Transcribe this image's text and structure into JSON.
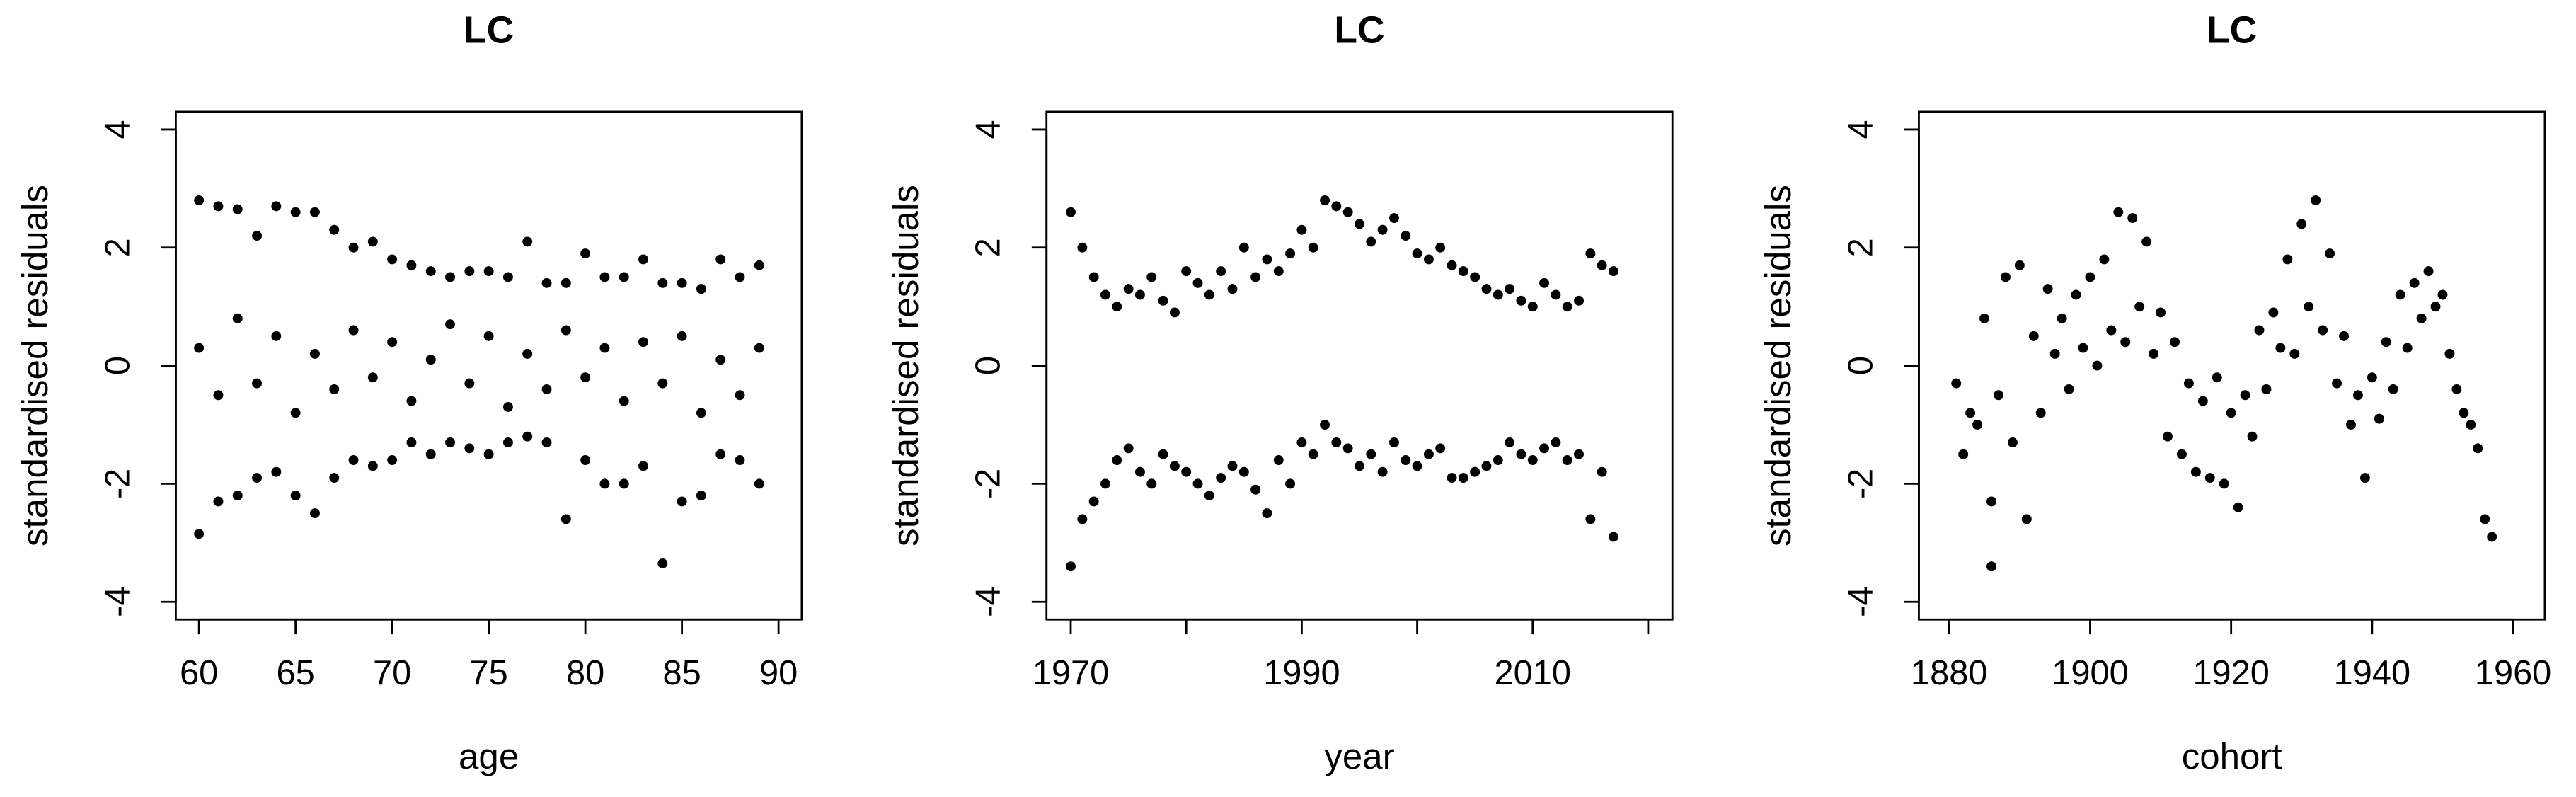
{
  "chart_data": [
    {
      "type": "scatter",
      "title": "LC",
      "xlabel": "age",
      "ylabel": "standardised residuals",
      "color": "#000000",
      "xlim": [
        58.8,
        91.2
      ],
      "ylim": [
        -4.3,
        4.3
      ],
      "xticks": [
        60,
        65,
        70,
        75,
        80,
        85,
        90
      ],
      "yticks": [
        -4,
        -2,
        0,
        2,
        4
      ],
      "x": [
        60,
        60,
        60,
        61,
        61,
        61,
        62,
        62,
        62,
        63,
        63,
        63,
        64,
        64,
        64,
        65,
        65,
        65,
        66,
        66,
        66,
        67,
        67,
        67,
        68,
        68,
        68,
        69,
        69,
        69,
        70,
        70,
        70,
        71,
        71,
        71,
        72,
        72,
        72,
        73,
        73,
        73,
        74,
        74,
        74,
        75,
        75,
        75,
        76,
        76,
        76,
        77,
        77,
        77,
        78,
        78,
        78,
        79,
        79,
        79,
        80,
        80,
        80,
        81,
        81,
        81,
        82,
        82,
        82,
        83,
        83,
        83,
        84,
        84,
        84,
        85,
        85,
        85,
        86,
        86,
        86,
        87,
        87,
        87,
        88,
        88,
        88,
        89,
        89,
        89
      ],
      "values": [
        2.8,
        -2.85,
        0.3,
        2.7,
        -2.3,
        -0.5,
        2.65,
        -2.2,
        0.8,
        2.2,
        -1.9,
        -0.3,
        2.7,
        -1.8,
        0.5,
        2.6,
        -2.2,
        -0.8,
        2.6,
        -2.5,
        0.2,
        2.3,
        -1.9,
        -0.4,
        2.0,
        -1.6,
        0.6,
        2.1,
        -1.7,
        -0.2,
        1.8,
        -1.6,
        0.4,
        1.7,
        -1.3,
        -0.6,
        1.6,
        -1.5,
        0.1,
        1.5,
        -1.3,
        0.7,
        1.6,
        -1.4,
        -0.3,
        1.6,
        -1.5,
        0.5,
        1.5,
        -1.3,
        -0.7,
        2.1,
        -1.2,
        0.2,
        1.4,
        -1.3,
        -0.4,
        1.4,
        -2.6,
        0.6,
        1.9,
        -1.6,
        -0.2,
        1.5,
        -2.0,
        0.3,
        1.5,
        -2.0,
        -0.6,
        1.8,
        -1.7,
        0.4,
        1.4,
        -3.35,
        -0.3,
        1.4,
        -2.3,
        0.5,
        1.3,
        -2.2,
        -0.8,
        1.8,
        -1.5,
        0.1,
        1.5,
        -1.6,
        -0.5,
        1.7,
        -2.0,
        0.3
      ]
    },
    {
      "type": "scatter",
      "title": "LC",
      "xlabel": "year",
      "ylabel": "standardised residuals",
      "color": "#000000",
      "xlim": [
        1967.9,
        2022.1
      ],
      "ylim": [
        -4.3,
        4.3
      ],
      "xticks": [
        1970,
        1990,
        2010
      ],
      "xticks_unlabeled": [
        1980,
        2000,
        2020
      ],
      "yticks": [
        -4,
        -2,
        0,
        2,
        4
      ],
      "x": [
        1970,
        1970,
        1971,
        1971,
        1972,
        1972,
        1973,
        1973,
        1974,
        1974,
        1975,
        1975,
        1976,
        1976,
        1977,
        1977,
        1978,
        1978,
        1979,
        1979,
        1980,
        1980,
        1981,
        1981,
        1982,
        1982,
        1983,
        1983,
        1984,
        1984,
        1985,
        1985,
        1986,
        1986,
        1987,
        1987,
        1988,
        1988,
        1989,
        1989,
        1990,
        1990,
        1991,
        1991,
        1992,
        1992,
        1993,
        1993,
        1994,
        1994,
        1995,
        1995,
        1996,
        1996,
        1997,
        1997,
        1998,
        1998,
        1999,
        1999,
        2000,
        2000,
        2001,
        2001,
        2002,
        2002,
        2003,
        2003,
        2004,
        2004,
        2005,
        2005,
        2006,
        2006,
        2007,
        2007,
        2008,
        2008,
        2009,
        2009,
        2010,
        2010,
        2011,
        2011,
        2012,
        2012,
        2013,
        2013,
        2014,
        2014,
        2015,
        2015,
        2016,
        2016,
        2017,
        2017
      ],
      "values": [
        2.6,
        -3.4,
        2.0,
        -2.6,
        1.5,
        -2.3,
        1.2,
        -2.0,
        1.0,
        -1.6,
        1.3,
        -1.4,
        1.2,
        -1.8,
        1.5,
        -2.0,
        1.1,
        -1.5,
        0.9,
        -1.7,
        1.6,
        -1.8,
        1.4,
        -2.0,
        1.2,
        -2.2,
        1.6,
        -1.9,
        1.3,
        -1.7,
        2.0,
        -1.8,
        1.5,
        -2.1,
        1.8,
        -2.5,
        1.6,
        -1.6,
        1.9,
        -2.0,
        2.3,
        -1.3,
        2.0,
        -1.5,
        2.8,
        -1.0,
        2.7,
        -1.3,
        2.6,
        -1.4,
        2.4,
        -1.7,
        2.1,
        -1.5,
        2.3,
        -1.8,
        2.5,
        -1.3,
        2.2,
        -1.6,
        1.9,
        -1.7,
        1.8,
        -1.5,
        2.0,
        -1.4,
        1.7,
        -1.9,
        1.6,
        -1.9,
        1.5,
        -1.8,
        1.3,
        -1.7,
        1.2,
        -1.6,
        1.3,
        -1.3,
        1.1,
        -1.5,
        1.0,
        -1.6,
        1.4,
        -1.4,
        1.2,
        -1.3,
        1.0,
        -1.6,
        1.1,
        -1.5,
        1.9,
        -2.6,
        1.7,
        -1.8,
        1.6,
        -2.9
      ]
    },
    {
      "type": "scatter",
      "title": "LC",
      "xlabel": "cohort",
      "ylabel": "standardised residuals",
      "color": "#000000",
      "xlim": [
        1875.7,
        1964.5
      ],
      "ylim": [
        -4.3,
        4.3
      ],
      "xticks": [
        1880,
        1900,
        1920,
        1940,
        1960
      ],
      "yticks": [
        -4,
        -2,
        0,
        2,
        4
      ],
      "x": [
        1881,
        1882,
        1883,
        1884,
        1885,
        1886,
        1886,
        1887,
        1888,
        1889,
        1890,
        1891,
        1892,
        1893,
        1894,
        1895,
        1896,
        1897,
        1898,
        1899,
        1900,
        1901,
        1902,
        1903,
        1904,
        1905,
        1906,
        1907,
        1908,
        1909,
        1910,
        1911,
        1912,
        1913,
        1914,
        1915,
        1916,
        1917,
        1918,
        1919,
        1920,
        1921,
        1922,
        1923,
        1924,
        1925,
        1926,
        1927,
        1928,
        1929,
        1930,
        1931,
        1932,
        1933,
        1934,
        1935,
        1936,
        1937,
        1938,
        1939,
        1940,
        1941,
        1942,
        1943,
        1944,
        1945,
        1946,
        1947,
        1948,
        1949,
        1950,
        1951,
        1952,
        1953,
        1954,
        1955,
        1956,
        1957
      ],
      "values": [
        -0.3,
        -1.5,
        -0.8,
        -1.0,
        0.8,
        -3.4,
        -2.3,
        -0.5,
        1.5,
        -1.3,
        1.7,
        -2.6,
        0.5,
        -0.8,
        1.3,
        0.2,
        0.8,
        -0.4,
        1.2,
        0.3,
        1.5,
        0.0,
        1.8,
        0.6,
        2.6,
        0.4,
        2.5,
        1.0,
        2.1,
        0.2,
        0.9,
        -1.2,
        0.4,
        -1.5,
        -0.3,
        -1.8,
        -0.6,
        -1.9,
        -0.2,
        -2.0,
        -0.8,
        -2.4,
        -0.5,
        -1.2,
        0.6,
        -0.4,
        0.9,
        0.3,
        1.8,
        0.2,
        2.4,
        1.0,
        2.8,
        0.6,
        1.9,
        -0.3,
        0.5,
        -1.0,
        -0.5,
        -1.9,
        -0.2,
        -0.9,
        0.4,
        -0.4,
        1.2,
        0.3,
        1.4,
        0.8,
        1.6,
        1.0,
        1.2,
        0.2,
        -0.4,
        -0.8,
        -1.0,
        -1.4,
        -2.6,
        -2.9
      ]
    }
  ]
}
